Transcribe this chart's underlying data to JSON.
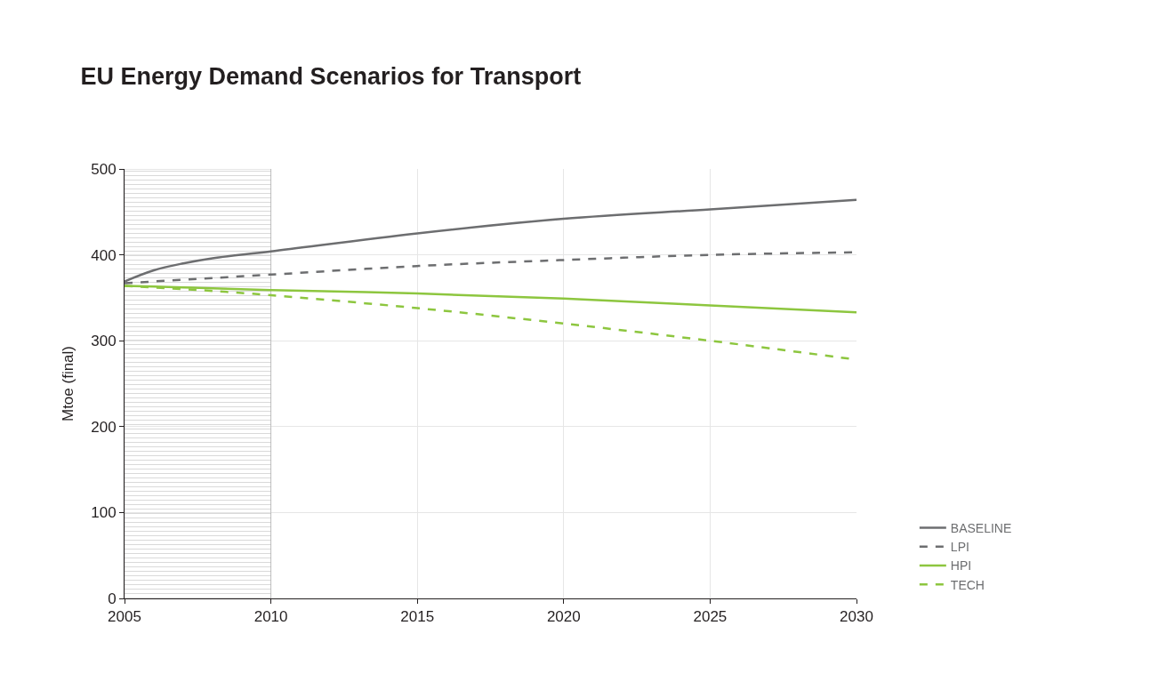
{
  "chart_data": {
    "type": "line",
    "title": "EU Energy Demand Scenarios for Transport",
    "ylabel": "Mtoe (final)",
    "x": [
      2005,
      2006,
      2007,
      2008,
      2010,
      2015,
      2020,
      2025,
      2030
    ],
    "series": [
      {
        "name": "BASELINE",
        "color": "#6d6e70",
        "line_style": "solid",
        "values": [
          369,
          382,
          390,
          396,
          404,
          425,
          442,
          453,
          464
        ]
      },
      {
        "name": "LPI",
        "color": "#6d6e70",
        "line_style": "dashed",
        "values": [
          367,
          369,
          371,
          373,
          377,
          387,
          394,
          400,
          403
        ]
      },
      {
        "name": "HPI",
        "color": "#8dc63f",
        "line_style": "solid",
        "values": [
          364,
          363,
          362,
          361,
          359,
          355,
          349,
          341,
          333
        ]
      },
      {
        "name": "TECH",
        "color": "#8dc63f",
        "line_style": "dashed",
        "values": [
          364,
          362,
          360,
          358,
          353,
          338,
          320,
          300,
          278
        ]
      }
    ],
    "xlim": [
      2005,
      2030
    ],
    "xticks": [
      2005,
      2010,
      2015,
      2020,
      2025,
      2030
    ],
    "ylim": [
      0,
      500
    ],
    "yticks": [
      0,
      100,
      200,
      300,
      400,
      500
    ],
    "bands": [
      {
        "axis": "x",
        "from": 2005,
        "to": 2010,
        "color": "#9a9a9a"
      }
    ],
    "grid": true,
    "legend": "bottom right"
  }
}
